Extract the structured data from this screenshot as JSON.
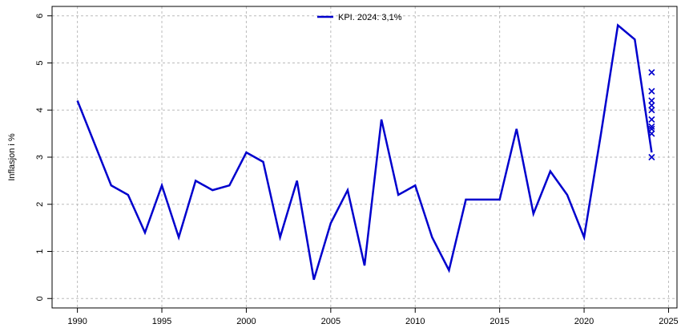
{
  "chart_data": {
    "type": "line",
    "y_label": "Inflasjon i %",
    "x": [
      1990,
      1991,
      1992,
      1993,
      1994,
      1995,
      1996,
      1997,
      1998,
      1999,
      2000,
      2001,
      2002,
      2003,
      2004,
      2005,
      2006,
      2007,
      2008,
      2009,
      2010,
      2011,
      2012,
      2013,
      2014,
      2015,
      2016,
      2017,
      2018,
      2019,
      2020,
      2021,
      2022,
      2023,
      2024
    ],
    "series": [
      {
        "name": "KPI. 2024: 3,1%",
        "color": "#0000cd",
        "values": [
          4.2,
          3.3,
          2.4,
          2.2,
          1.4,
          2.4,
          1.3,
          2.5,
          2.3,
          2.4,
          3.1,
          2.9,
          1.3,
          2.5,
          0.4,
          1.6,
          2.3,
          0.7,
          3.8,
          2.2,
          2.4,
          1.3,
          0.6,
          2.1,
          2.1,
          2.1,
          3.6,
          1.8,
          2.7,
          2.2,
          1.3,
          3.5,
          5.8,
          5.5,
          3.1
        ]
      }
    ],
    "markers": {
      "type": "scatter",
      "color": "#0000cd",
      "x": [
        2024,
        2024,
        2024,
        2024,
        2024,
        2024,
        2024,
        2024,
        2024,
        2024
      ],
      "values": [
        4.8,
        4.4,
        4.2,
        4.1,
        4.0,
        3.8,
        3.65,
        3.6,
        3.5,
        3.0
      ]
    },
    "xlim": [
      1988.5,
      2025.5
    ],
    "ylim": [
      -0.2,
      6.2
    ],
    "xticks": [
      1990,
      1995,
      2000,
      2005,
      2010,
      2015,
      2020,
      2025
    ],
    "yticks": [
      0,
      1,
      2,
      3,
      4,
      5,
      6
    ],
    "grid": true,
    "legend": "top"
  }
}
